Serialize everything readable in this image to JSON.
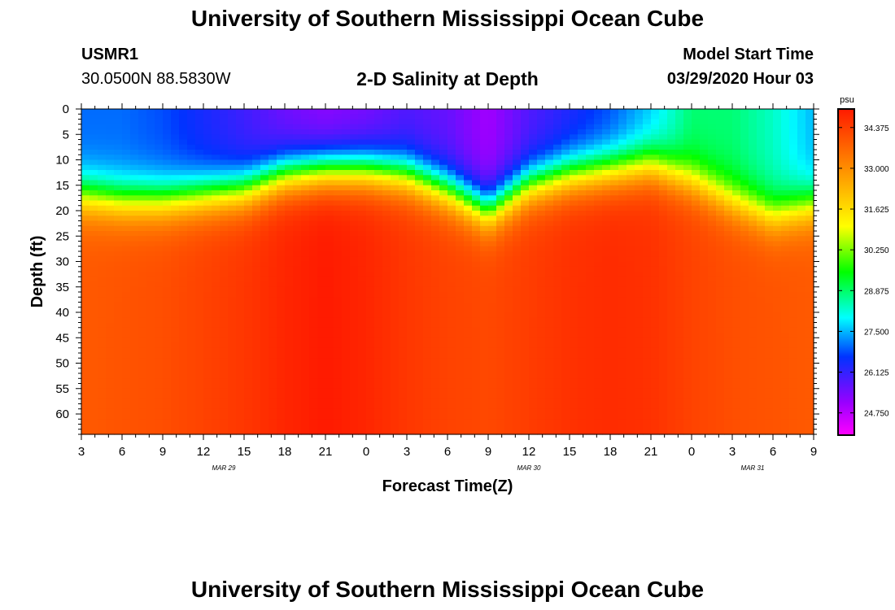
{
  "header": {
    "title_top": "University of Southern Mississippi Ocean Cube",
    "title_bottom": "University of Southern Mississippi Ocean Cube",
    "station": "USMR1",
    "location": "30.0500N 88.5830W",
    "plot_title": "2-D Salinity at Depth",
    "model_start_label": "Model Start Time",
    "model_start_value": "03/29/2020 Hour 03"
  },
  "chart_data": {
    "type": "heatmap",
    "title": "2-D Salinity at Depth",
    "xlabel": "Forecast Time(Z)",
    "ylabel": "Depth (ft)",
    "x_tick_labels": [
      "3",
      "6",
      "9",
      "12",
      "15",
      "18",
      "21",
      "0",
      "3",
      "6",
      "9",
      "12",
      "15",
      "18",
      "21",
      "0",
      "3",
      "6",
      "9"
    ],
    "date_labels": [
      {
        "text": "MAR 29",
        "at_tick": 3.5
      },
      {
        "text": "MAR 30",
        "at_tick": 11
      },
      {
        "text": "MAR 31",
        "at_tick": 16.5
      }
    ],
    "y_tick_labels": [
      "0",
      "5",
      "10",
      "15",
      "20",
      "25",
      "30",
      "35",
      "40",
      "45",
      "50",
      "55",
      "60"
    ],
    "ylim": [
      0,
      64
    ],
    "forecast_hours_range": [
      0,
      54
    ],
    "colorbar": {
      "unit": "psu",
      "range": [
        24.0,
        35.0
      ],
      "tick_labels": [
        "34.375",
        "33.000",
        "31.625",
        "30.250",
        "28.875",
        "27.500",
        "26.125",
        "24.750"
      ]
    },
    "surface_salinity_psu": [
      27.0,
      27.0,
      26.8,
      26.4,
      26.0,
      25.5,
      25.2,
      25.4,
      25.8,
      25.6,
      25.0,
      25.8,
      26.3,
      26.8,
      27.6,
      28.8,
      28.8,
      28.3,
      27.5
    ],
    "halocline_depth_ft": [
      17,
      18,
      18,
      17,
      16,
      13,
      12,
      12,
      13,
      16,
      20,
      15,
      13,
      12,
      11,
      14,
      18,
      21,
      19
    ],
    "deep_salinity_psu": [
      33.9,
      34.0,
      34.1,
      34.3,
      34.5,
      34.8,
      35.0,
      34.8,
      34.5,
      34.3,
      34.2,
      34.4,
      34.6,
      34.7,
      34.6,
      34.3,
      34.1,
      34.0,
      33.9
    ]
  }
}
